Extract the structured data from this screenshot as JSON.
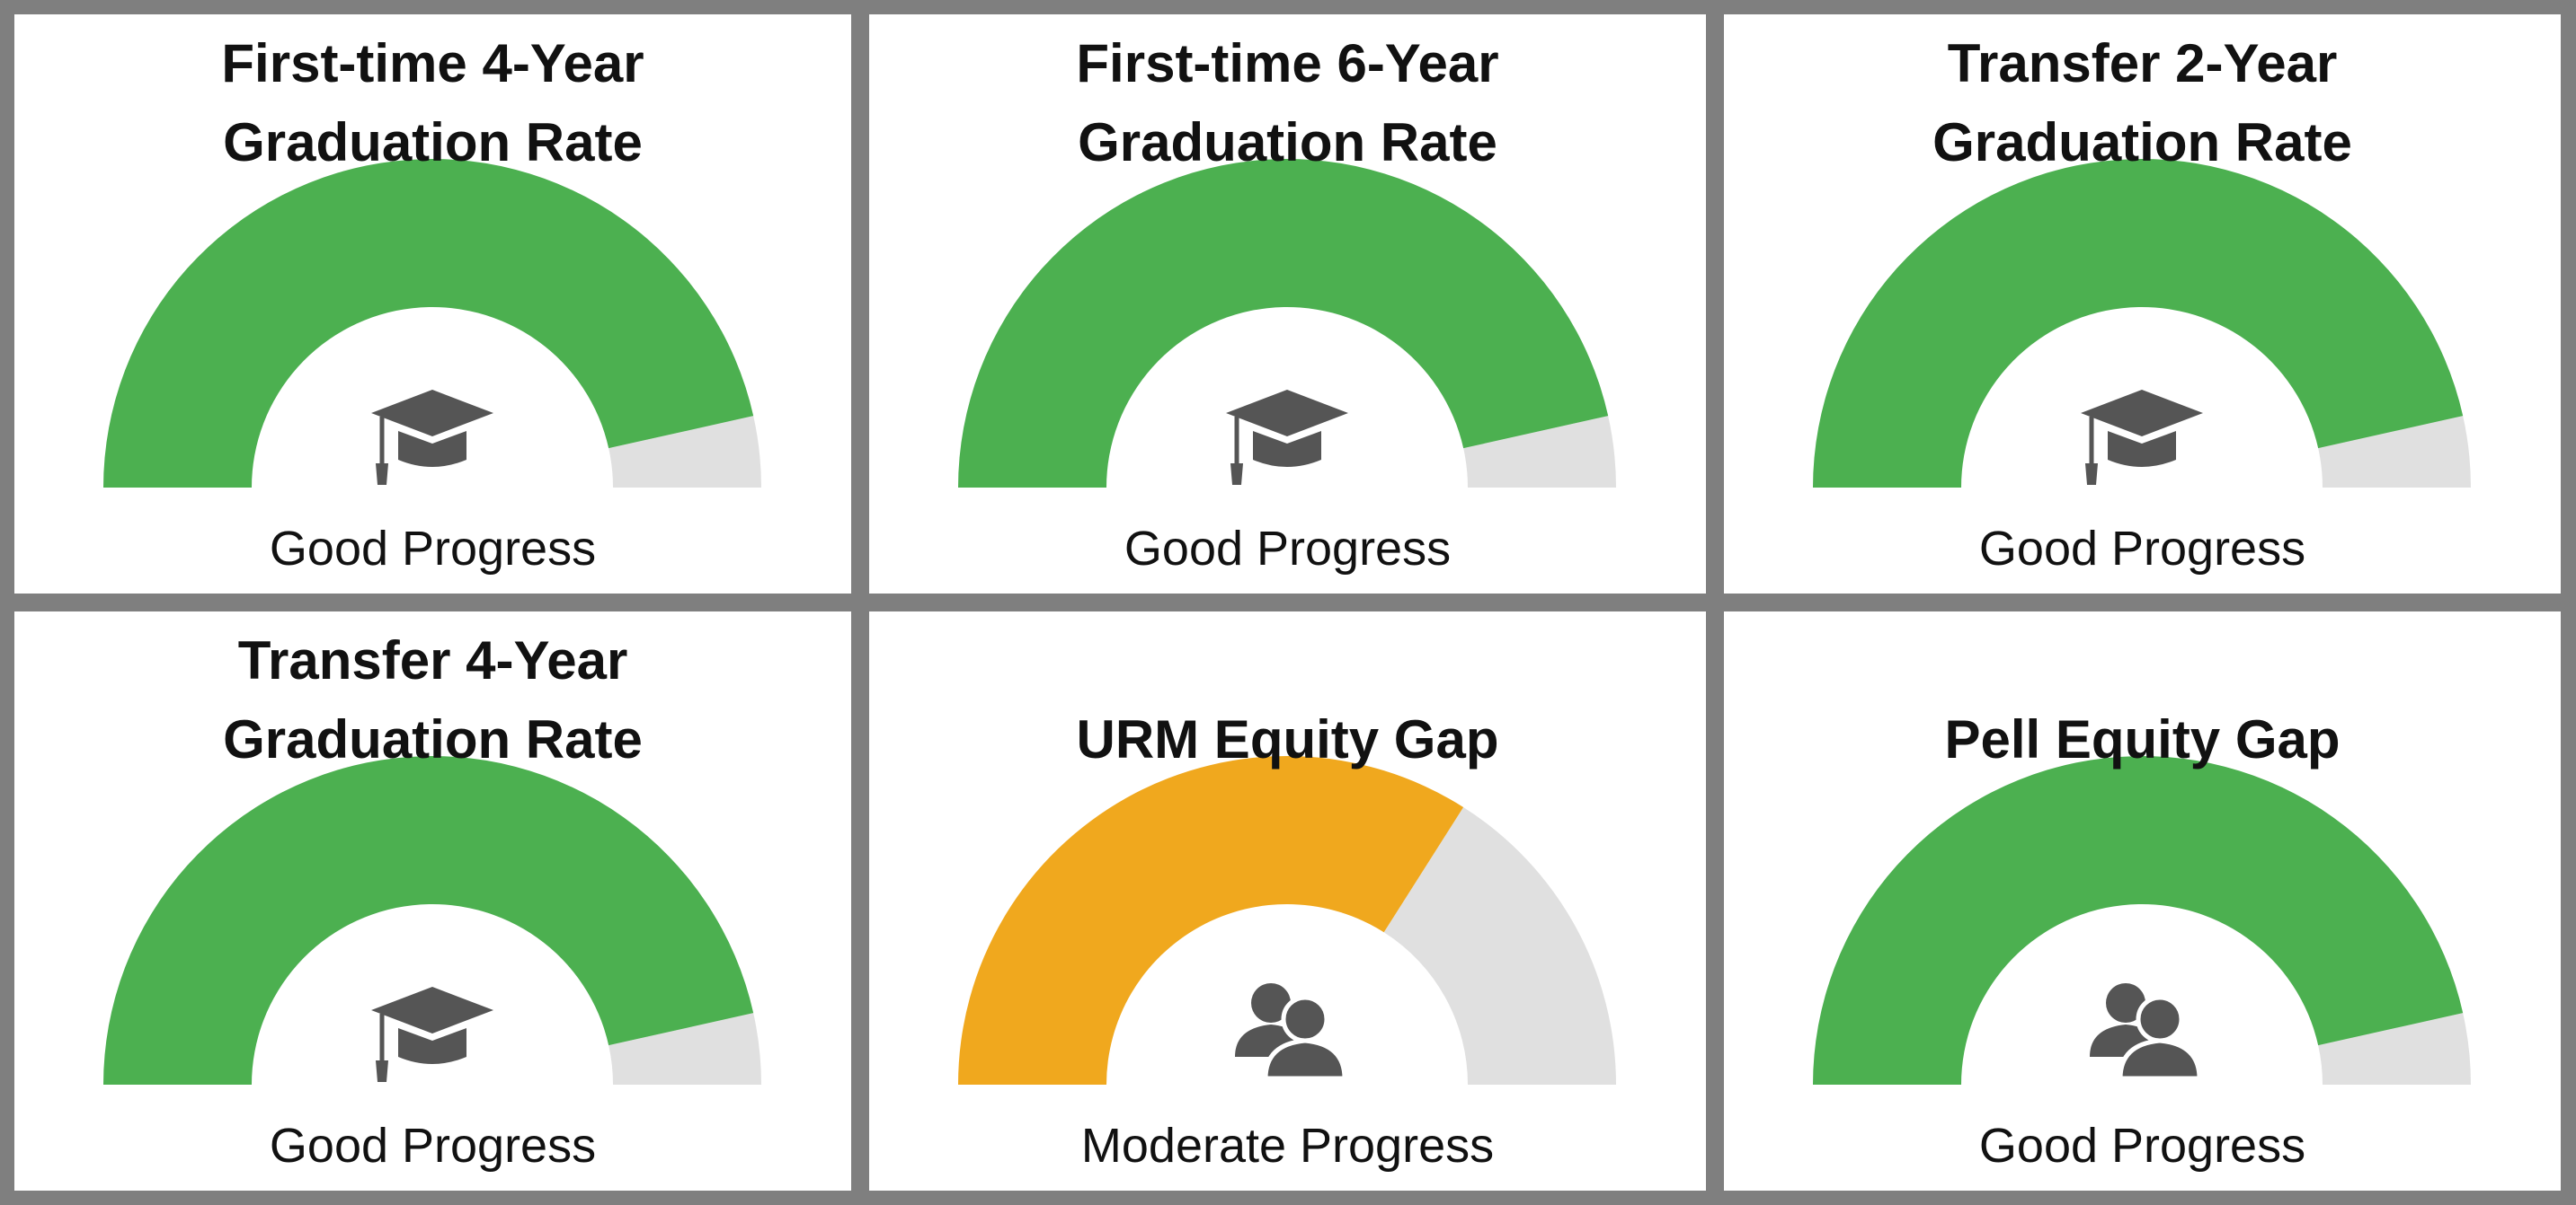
{
  "chart_data": [
    {
      "type": "gauge",
      "title": "First-time 4-Year Graduation Rate",
      "label": "Good Progress",
      "value": 93,
      "ylim": [
        0,
        100
      ],
      "color": "#4cb050",
      "icon": "graduation-cap"
    },
    {
      "type": "gauge",
      "title": "First-time 6-Year Graduation Rate",
      "label": "Good Progress",
      "value": 93,
      "ylim": [
        0,
        100
      ],
      "color": "#4cb050",
      "icon": "graduation-cap"
    },
    {
      "type": "gauge",
      "title": "Transfer 2-Year Graduation Rate",
      "label": "Good Progress",
      "value": 93,
      "ylim": [
        0,
        100
      ],
      "color": "#4cb050",
      "icon": "graduation-cap"
    },
    {
      "type": "gauge",
      "title": "Transfer 4-Year Graduation Rate",
      "label": "Good Progress",
      "value": 93,
      "ylim": [
        0,
        100
      ],
      "color": "#4cb050",
      "icon": "graduation-cap"
    },
    {
      "type": "gauge",
      "title": "URM Equity Gap",
      "label": "Moderate Progress",
      "value": 68,
      "ylim": [
        0,
        100
      ],
      "color": "#f0a81e",
      "icon": "people"
    },
    {
      "type": "gauge",
      "title": "Pell Equity Gap",
      "label": "Good Progress",
      "value": 93,
      "ylim": [
        0,
        100
      ],
      "color": "#4cb050",
      "icon": "people"
    }
  ]
}
